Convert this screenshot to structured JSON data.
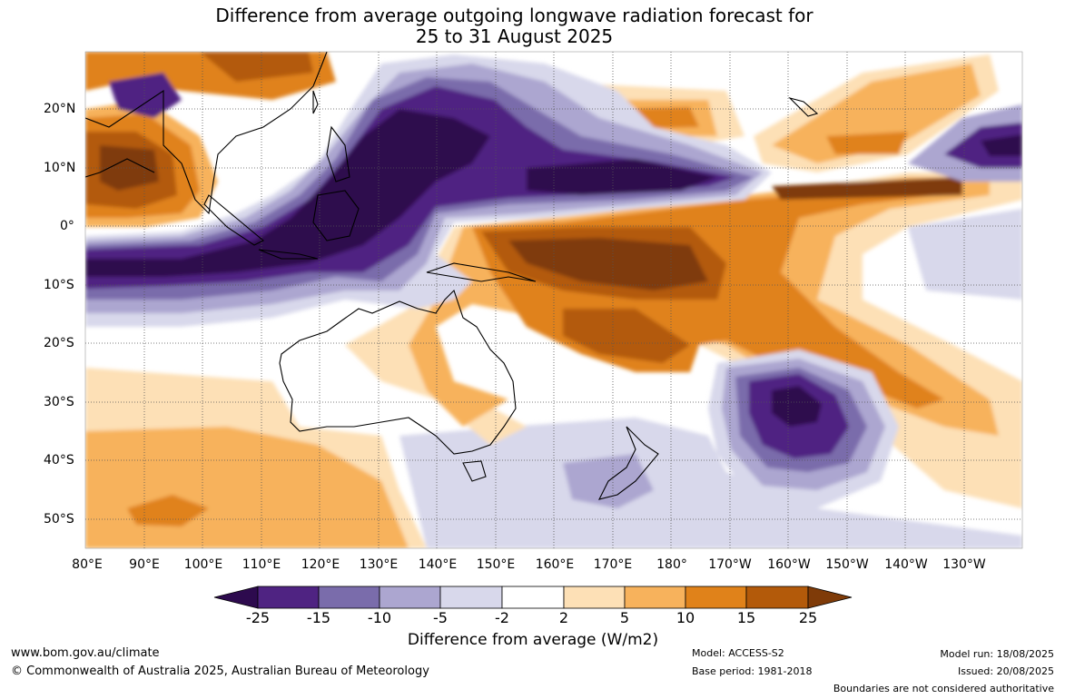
{
  "title": {
    "line1": "Difference from average outgoing longwave radiation forecast for",
    "line2": "25 to 31 August 2025"
  },
  "map": {
    "lon_labels": [
      "80°E",
      "90°E",
      "100°E",
      "110°E",
      "120°E",
      "130°E",
      "140°E",
      "150°E",
      "160°E",
      "170°E",
      "180°",
      "170°W",
      "160°W",
      "150°W",
      "140°W",
      "130°W"
    ],
    "lat_labels": [
      "20°N",
      "10°N",
      "0°",
      "10°S",
      "20°S",
      "30°S",
      "40°S",
      "50°S"
    ]
  },
  "colorbar": {
    "ticks": [
      "-25",
      "-15",
      "-10",
      "-5",
      "-2",
      "2",
      "5",
      "10",
      "15",
      "25"
    ],
    "colors": [
      "#2d0a4e",
      "#4f2382",
      "#7a6cab",
      "#aca6d0",
      "#d8d8eb",
      "#ffffff",
      "#fde0b6",
      "#f7b25c",
      "#e0821a",
      "#b35a0a",
      "#7f3b08"
    ],
    "title": "Difference from average (W/m2)"
  },
  "footer": {
    "url": "www.bom.gov.au/climate",
    "copyright": "© Commonwealth of Australia 2025, Australian Bureau of Meteorology",
    "model": "Model: ACCESS-S2",
    "base_period": "Base period: 1981-2018",
    "model_run": "Model run: 18/08/2025",
    "issued": "Issued: 20/08/2025",
    "disclaimer": "Boundaries are not considered authoritative"
  }
}
